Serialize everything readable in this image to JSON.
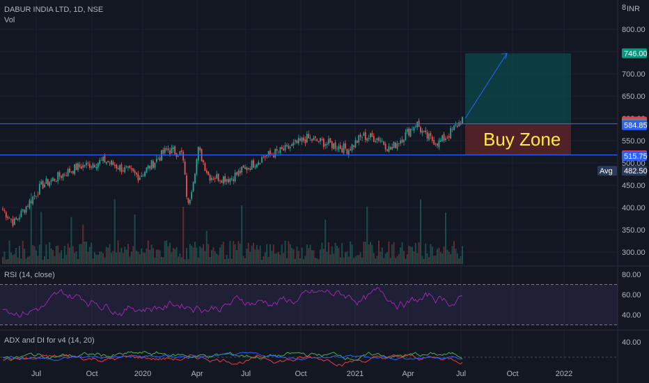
{
  "header": {
    "title": "DABUR INDIA LTD, 1D, NSE",
    "vol_label": "Vol",
    "currency": "INR"
  },
  "chart_data": [
    {
      "type": "candlestick",
      "name": "price-panel",
      "y_ticks": [
        "800.00",
        "750.00",
        "700.00",
        "650.00",
        "600.00",
        "550.00",
        "500.00",
        "450.00",
        "400.00",
        "350.00",
        "300.00"
      ],
      "y_top_partial": "8",
      "ylim": [
        280,
        820
      ],
      "price_tags": [
        {
          "label": "746.00",
          "value": 746,
          "color": "#089981"
        },
        {
          "label": "593.15",
          "value": 593.15,
          "color": "#f23645"
        },
        {
          "label": "588.90",
          "value": 588.9,
          "color": "#787b86"
        },
        {
          "label": "584.85",
          "value": 584.85,
          "color": "#2962ff"
        },
        {
          "label": "517.10",
          "value": 517.1,
          "color": "#f23645"
        },
        {
          "label": "515.75",
          "value": 515.75,
          "color": "#2962ff"
        },
        {
          "label": "482.50",
          "value": 482.5,
          "color": "#2a3a5c"
        }
      ],
      "avg_label": "Avg",
      "horizontal_lines": [
        588,
        518
      ],
      "annotation": {
        "text": "Buy Zone",
        "color": "#ffeb3b"
      },
      "target_value": 746,
      "x_ticks": [
        "Jul",
        "Oct",
        "2020",
        "Apr",
        "Jul",
        "Oct",
        "2021",
        "Apr",
        "Jul",
        "Oct",
        "2022"
      ]
    },
    {
      "type": "line",
      "name": "rsi-panel",
      "title": "RSI (14, close)",
      "y_ticks": [
        "80.00",
        "60.00",
        "40.00"
      ],
      "ylim": [
        28,
        90
      ],
      "band": [
        30,
        70
      ]
    },
    {
      "type": "line",
      "name": "adx-panel",
      "title": "ADX and DI for v4 (14, 20)",
      "y_ticks": [
        "40.00"
      ],
      "ylim": [
        0,
        55
      ]
    }
  ]
}
